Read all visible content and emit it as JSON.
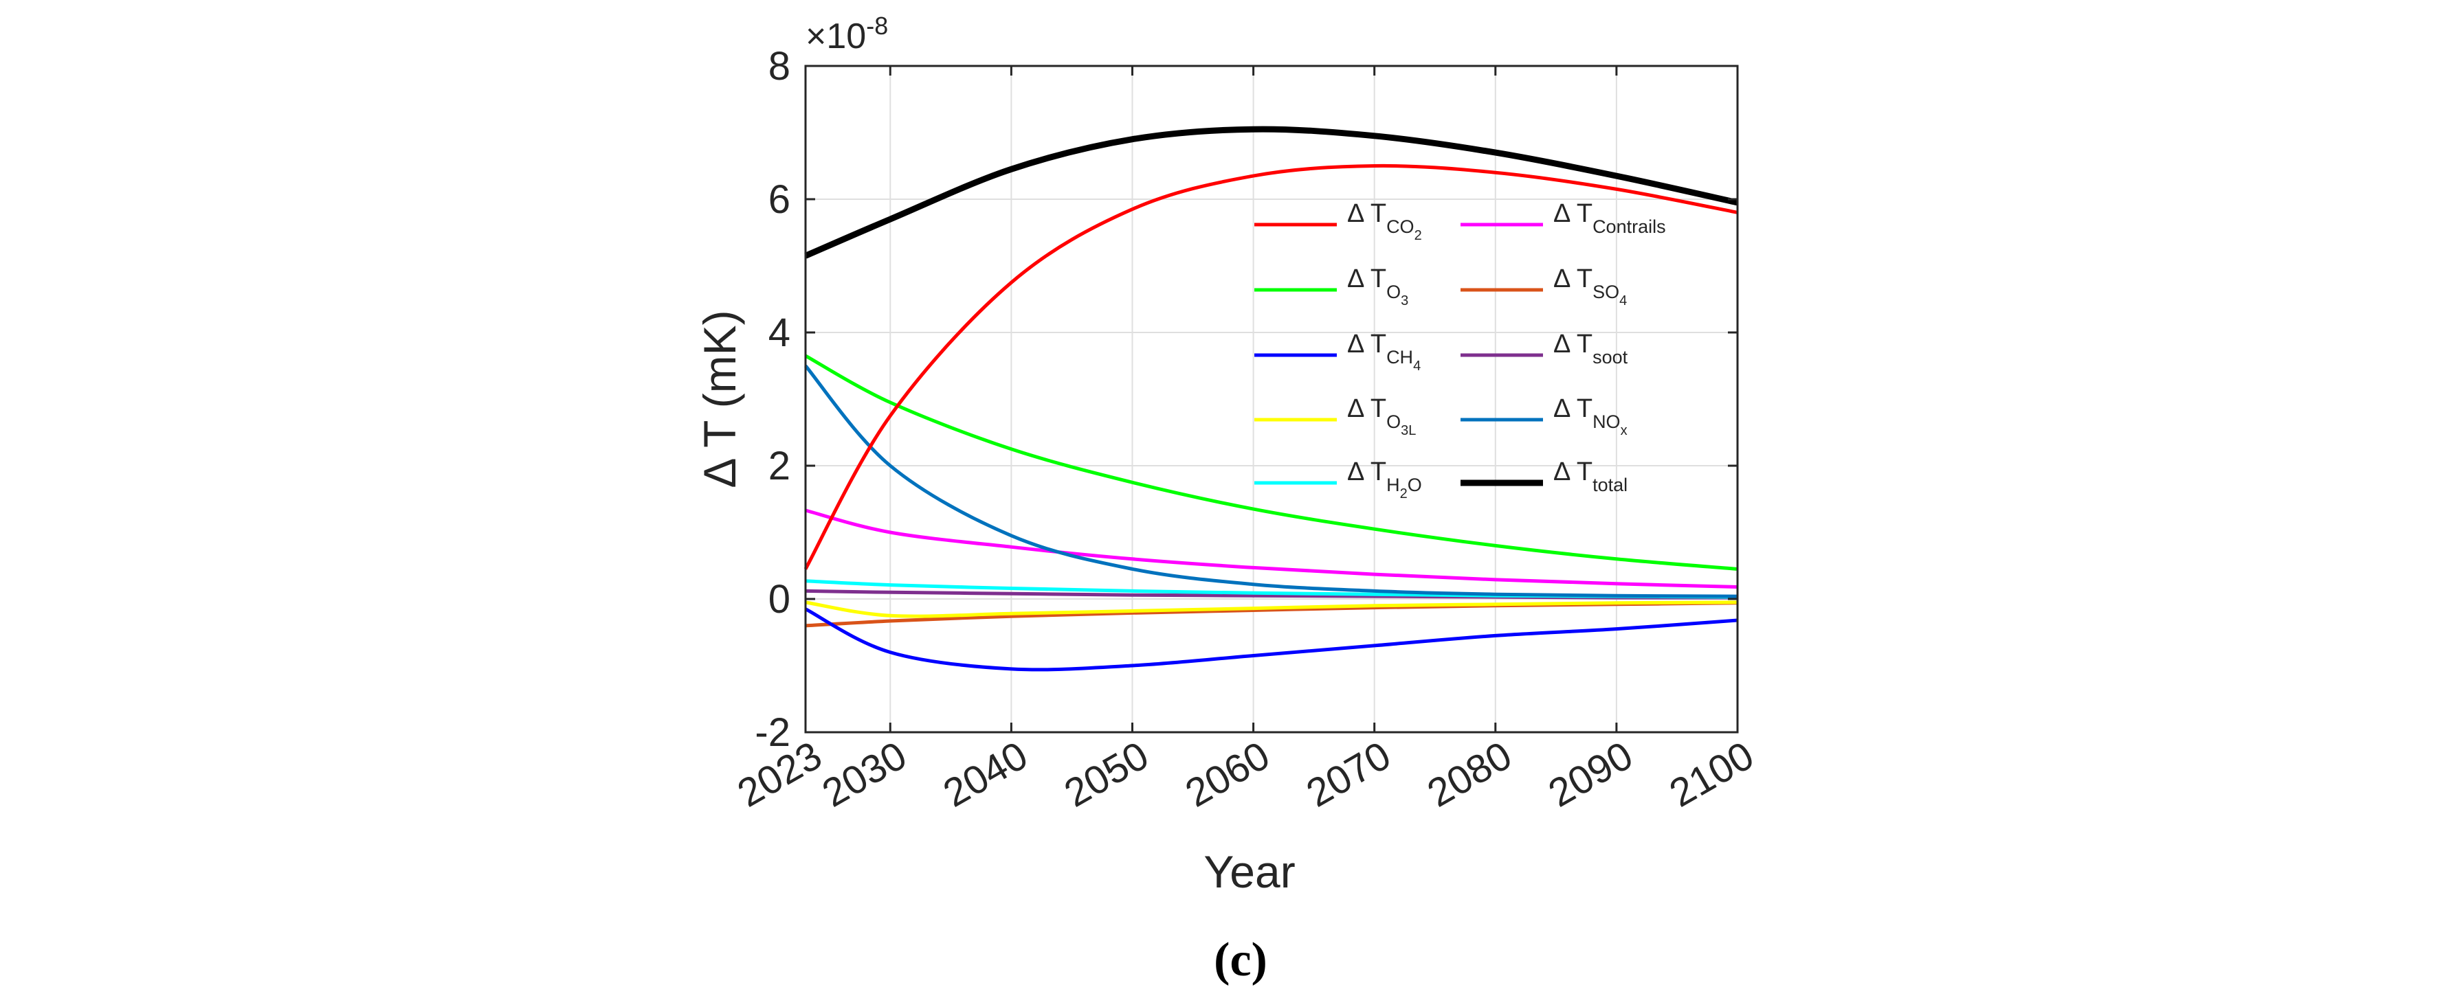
{
  "chart_data": {
    "type": "line",
    "title": "",
    "xlabel": "Year",
    "ylabel": "Δ T (mK)",
    "xlim": [
      2023,
      2100
    ],
    "ylim": [
      -2,
      8
    ],
    "x_ticks": [
      2023,
      2030,
      2040,
      2050,
      2060,
      2070,
      2080,
      2090,
      2100
    ],
    "x_tick_labels": [
      "2023",
      "2030",
      "2040",
      "2050",
      "2060",
      "2070",
      "2080",
      "2090",
      "2100"
    ],
    "y_ticks": [
      -2,
      0,
      2,
      4,
      6,
      8
    ],
    "y_tick_labels": [
      "-2",
      "0",
      "2",
      "4",
      "6",
      "8"
    ],
    "y_exponent_base": "×10",
    "y_exponent_power": "-8",
    "grid": true,
    "legend_position": "top-right",
    "x": [
      2023,
      2030,
      2040,
      2050,
      2060,
      2070,
      2080,
      2090,
      2100
    ],
    "series": [
      {
        "name": "CO2",
        "prefix": "Δ T",
        "sub": "CO",
        "subsub": "2",
        "color": "#ff0000",
        "width": 5,
        "values": [
          0.45,
          2.75,
          4.75,
          5.85,
          6.35,
          6.5,
          6.4,
          6.15,
          5.8
        ]
      },
      {
        "name": "O3",
        "prefix": "Δ T",
        "sub": "O",
        "subsub": "3",
        "color": "#00ff00",
        "width": 5,
        "values": [
          3.65,
          2.95,
          2.25,
          1.75,
          1.35,
          1.05,
          0.8,
          0.6,
          0.45
        ]
      },
      {
        "name": "CH4",
        "prefix": "Δ T",
        "sub": "CH",
        "subsub": "4",
        "color": "#0000ff",
        "width": 5,
        "values": [
          -0.15,
          -0.8,
          -1.05,
          -1.0,
          -0.85,
          -0.7,
          -0.55,
          -0.45,
          -0.32
        ]
      },
      {
        "name": "O3L",
        "prefix": "Δ T",
        "sub": "O",
        "subsub": "3L",
        "color": "#ffff00",
        "width": 5,
        "values": [
          -0.05,
          -0.25,
          -0.22,
          -0.18,
          -0.14,
          -0.1,
          -0.08,
          -0.06,
          -0.05
        ]
      },
      {
        "name": "H2O",
        "prefix": "Δ T",
        "sub": "H",
        "subsub": "2",
        "tail": "O",
        "color": "#00ffff",
        "width": 5,
        "values": [
          0.27,
          0.21,
          0.16,
          0.12,
          0.09,
          0.07,
          0.05,
          0.04,
          0.03
        ]
      },
      {
        "name": "Contrails",
        "prefix": "Δ T",
        "sub": "Contrails",
        "subsub": "",
        "color": "#ff00ff",
        "width": 5,
        "values": [
          1.33,
          1.0,
          0.78,
          0.6,
          0.47,
          0.37,
          0.29,
          0.23,
          0.18
        ]
      },
      {
        "name": "SO4",
        "prefix": "Δ T",
        "sub": "SO",
        "subsub": "4",
        "color": "#d95319",
        "width": 5,
        "values": [
          -0.4,
          -0.33,
          -0.26,
          -0.21,
          -0.17,
          -0.13,
          -0.1,
          -0.08,
          -0.06
        ]
      },
      {
        "name": "soot",
        "prefix": "Δ T",
        "sub": "soot",
        "subsub": "",
        "color": "#7e2f8e",
        "width": 5,
        "values": [
          0.12,
          0.1,
          0.08,
          0.06,
          0.05,
          0.04,
          0.03,
          0.02,
          0.02
        ]
      },
      {
        "name": "NOx",
        "prefix": "Δ T",
        "sub": "NO",
        "subsub": "x",
        "color": "#0072bd",
        "width": 5,
        "values": [
          3.5,
          2.0,
          0.95,
          0.45,
          0.22,
          0.12,
          0.07,
          0.05,
          0.04
        ]
      },
      {
        "name": "total",
        "prefix": "Δ T",
        "sub": "total",
        "subsub": "",
        "color": "#000000",
        "width": 9,
        "values": [
          5.15,
          5.7,
          6.45,
          6.9,
          7.05,
          6.95,
          6.7,
          6.35,
          5.95
        ]
      }
    ]
  },
  "caption": "(c)"
}
